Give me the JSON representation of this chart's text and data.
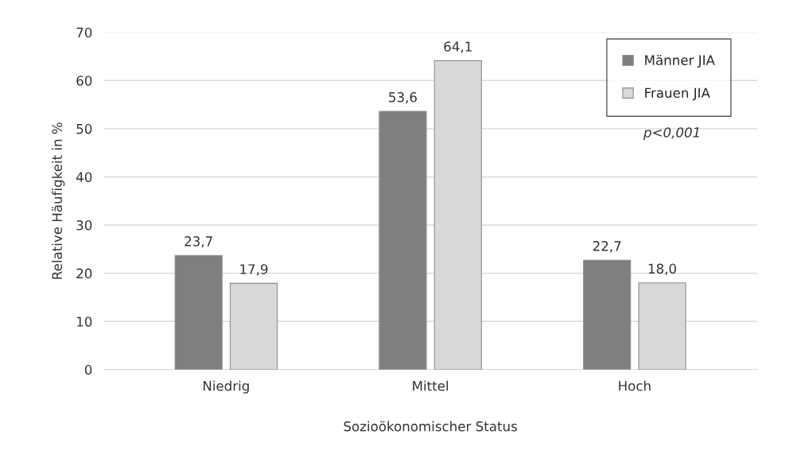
{
  "chart_data": {
    "type": "bar",
    "xlabel": "Sozioökonomischer Status",
    "ylabel": "Relative Häufigkeit in %",
    "categories": [
      "Niedrig",
      "Mittel",
      "Hoch"
    ],
    "series": [
      {
        "name": "Männer JIA",
        "color": "#7f7f7f",
        "values": [
          23.7,
          53.6,
          22.7
        ],
        "value_labels": [
          "23,7",
          "53,6",
          "22,7"
        ]
      },
      {
        "name": "Frauen JIA",
        "color": "#d9d9d9",
        "values": [
          17.9,
          64.1,
          18.0
        ],
        "value_labels": [
          "17,9",
          "64,1",
          "18,0"
        ]
      }
    ],
    "ylim": [
      0,
      70
    ],
    "yticks": [
      0,
      10,
      20,
      30,
      40,
      50,
      60,
      70
    ],
    "grid": "y",
    "legend": "top right",
    "annotations": [
      "p<0,001"
    ]
  }
}
